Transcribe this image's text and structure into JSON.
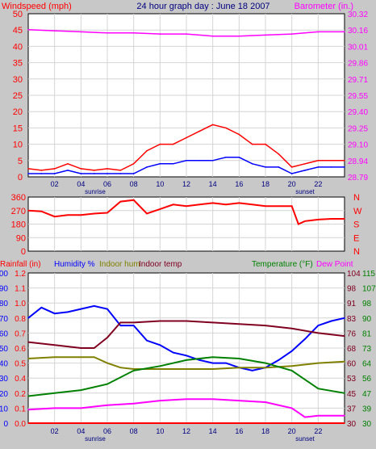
{
  "chart_data": [
    {
      "type": "line",
      "title": "24 hour graph day : June 18 2007",
      "ylabel_left": "Windspeed (mph)",
      "ylabel_right": "Barometer (in.)",
      "x_ticks": [
        "02",
        "04",
        "06",
        "08",
        "10",
        "12",
        "14",
        "16",
        "18",
        "20",
        "22"
      ],
      "x_markers": [
        "sunrise",
        "sunset"
      ],
      "ylim_left": [
        0,
        50
      ],
      "yticks_left": [
        "0",
        "5",
        "10",
        "15",
        "20",
        "25",
        "30",
        "35",
        "40",
        "45",
        "50"
      ],
      "ylim_right": [
        28.79,
        30.32
      ],
      "yticks_right": [
        "28.79",
        "28.94",
        "29.10",
        "29.25",
        "29.40",
        "29.55",
        "29.71",
        "29.86",
        "30.01",
        "30.16",
        "30.32"
      ],
      "grid": true,
      "series": [
        {
          "color": "#ff0000",
          "axis": "left",
          "x": [
            0,
            1,
            2,
            3,
            4,
            5,
            6,
            7,
            8,
            9,
            10,
            11,
            12,
            13,
            14,
            15,
            16,
            17,
            18,
            19,
            20,
            21,
            22,
            23,
            24
          ],
          "values": [
            2.5,
            2,
            2.5,
            4,
            2.5,
            2,
            2.5,
            2,
            4,
            8,
            10,
            10,
            12,
            14,
            16,
            15,
            13,
            10,
            10,
            7,
            3,
            4,
            5,
            5,
            5
          ]
        },
        {
          "color": "#0000ff",
          "axis": "left",
          "x": [
            0,
            1,
            2,
            3,
            4,
            5,
            6,
            7,
            8,
            9,
            10,
            11,
            12,
            13,
            14,
            15,
            16,
            17,
            18,
            19,
            20,
            21,
            22,
            23,
            24
          ],
          "values": [
            1,
            1,
            1,
            2,
            1,
            1,
            1,
            1,
            1,
            3,
            4,
            4,
            5,
            5,
            5,
            6,
            6,
            4,
            3,
            3,
            1,
            2,
            3,
            3,
            3
          ]
        },
        {
          "color": "#ff00ff",
          "axis": "right",
          "x": [
            0,
            2,
            4,
            6,
            8,
            10,
            12,
            14,
            16,
            18,
            20,
            22,
            24
          ],
          "values": [
            30.17,
            30.16,
            30.15,
            30.14,
            30.14,
            30.13,
            30.13,
            30.11,
            30.11,
            30.12,
            30.13,
            30.15,
            30.15
          ]
        }
      ]
    },
    {
      "type": "line",
      "ylim": [
        0,
        360
      ],
      "yticks_left": [
        "0",
        "90",
        "180",
        "270",
        "360"
      ],
      "yticks_right": [
        "N",
        "E",
        "S",
        "W",
        "N"
      ],
      "x_ticks": [],
      "grid": true,
      "series": [
        {
          "color": "#ff0000",
          "x": [
            0,
            1,
            2,
            3,
            4,
            5,
            6,
            7,
            8,
            9,
            10,
            11,
            12,
            13,
            14,
            15,
            16,
            17,
            18,
            19,
            20,
            20.5,
            21,
            22,
            23,
            24
          ],
          "values": [
            270,
            265,
            230,
            240,
            240,
            250,
            255,
            330,
            340,
            250,
            280,
            310,
            300,
            310,
            320,
            310,
            320,
            310,
            300,
            300,
            300,
            180,
            200,
            210,
            215,
            215
          ]
        }
      ]
    },
    {
      "type": "line",
      "series_labels": [
        "Rainfall (in)",
        "Humidity %",
        "Indoor hum",
        "Indoor temp",
        "Temperature (°F)",
        "Dew Point"
      ],
      "x_ticks": [
        "02",
        "04",
        "06",
        "08",
        "10",
        "12",
        "14",
        "16",
        "18",
        "20",
        "22"
      ],
      "x_markers": [
        "sunrise",
        "sunset"
      ],
      "yticks_humidity": [
        "0",
        "10",
        "20",
        "30",
        "40",
        "50",
        "60",
        "70",
        "80",
        "90",
        "100"
      ],
      "yticks_rain": [
        "0.0",
        "0.1",
        "0.2",
        "0.4",
        "0.5",
        "0.6",
        "0.7",
        "0.8",
        "1.0",
        "1.1",
        "1.2"
      ],
      "yticks_temp_a": [
        "30",
        "37",
        "45",
        "53",
        "60",
        "68",
        "76",
        "83",
        "91",
        "98",
        "104"
      ],
      "yticks_temp_b": [
        "30",
        "39",
        "47",
        "56",
        "64",
        "73",
        "81",
        "90",
        "98",
        "107",
        "115"
      ],
      "ylim_humidity": [
        0,
        100
      ],
      "ylim_temp": [
        30,
        115
      ],
      "grid": true,
      "series": [
        {
          "name": "Humidity %",
          "color": "#0000ff",
          "axis": "humidity",
          "x": [
            0,
            1,
            2,
            3,
            4,
            5,
            6,
            7,
            8,
            9,
            10,
            11,
            12,
            13,
            14,
            15,
            16,
            17,
            18,
            19,
            20,
            21,
            22,
            23,
            24
          ],
          "values": [
            70,
            77,
            73,
            74,
            76,
            78,
            76,
            65,
            65,
            55,
            52,
            47,
            45,
            42,
            40,
            40,
            37,
            35,
            37,
            42,
            48,
            56,
            65,
            68,
            70
          ]
        },
        {
          "name": "Indoor hum",
          "color": "#808000",
          "axis": "humidity",
          "x": [
            0,
            2,
            4,
            5,
            6,
            7,
            8,
            10,
            12,
            14,
            16,
            18,
            20,
            22,
            24
          ],
          "values": [
            43,
            44,
            44,
            44,
            40,
            37,
            36,
            36,
            36,
            36,
            37,
            37,
            38,
            40,
            41
          ]
        },
        {
          "name": "Indoor temp",
          "color": "#800020",
          "axis": "humidity",
          "x": [
            0,
            2,
            4,
            5,
            6,
            7,
            8,
            10,
            12,
            14,
            16,
            18,
            20,
            22,
            24
          ],
          "values": [
            54,
            52,
            50,
            50,
            57,
            67,
            67,
            68,
            68,
            67,
            66,
            65,
            63,
            60,
            58
          ]
        },
        {
          "name": "Temperature (°F)",
          "color": "#008000",
          "axis": "humidity",
          "x": [
            0,
            2,
            4,
            6,
            8,
            10,
            12,
            14,
            16,
            18,
            20,
            22,
            24
          ],
          "values": [
            18,
            20,
            22,
            26,
            35,
            38,
            42,
            44,
            43,
            40,
            35,
            23,
            20
          ]
        },
        {
          "name": "Dew Point",
          "color": "#ff00ff",
          "axis": "humidity",
          "x": [
            0,
            2,
            4,
            6,
            8,
            10,
            12,
            14,
            16,
            18,
            20,
            21,
            22,
            24
          ],
          "values": [
            9,
            10,
            10,
            12,
            13,
            15,
            16,
            16,
            15,
            14,
            10,
            4,
            5,
            5
          ]
        },
        {
          "name": "Rainfall (in)",
          "color": "#ff0000",
          "axis": "humidity",
          "x": [
            0,
            24
          ],
          "values": [
            0,
            0
          ]
        }
      ]
    }
  ]
}
